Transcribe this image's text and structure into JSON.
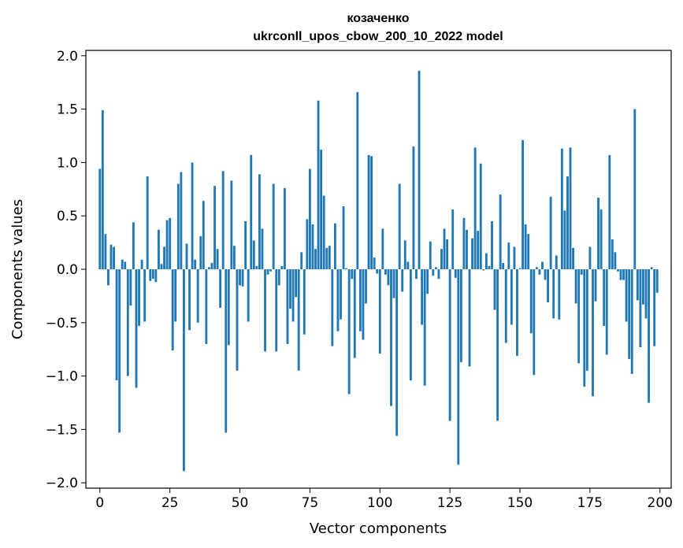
{
  "chart_data": {
    "type": "bar",
    "title": "козаченко",
    "subtitle": "ukrconll_upos_cbow_200_10_2022 model",
    "xlabel": "Vector components",
    "ylabel": "Components values",
    "xlim": [
      -5,
      204
    ],
    "ylim": [
      -2.05,
      2.05
    ],
    "x_ticks": [
      0,
      25,
      50,
      75,
      100,
      125,
      150,
      175,
      200
    ],
    "x_tick_labels": [
      "0",
      "25",
      "50",
      "75",
      "100",
      "125",
      "150",
      "175",
      "200"
    ],
    "y_ticks": [
      -2.0,
      -1.5,
      -1.0,
      -0.5,
      0.0,
      0.5,
      1.0,
      1.5,
      2.0
    ],
    "y_tick_labels": [
      "−2.0",
      "−1.5",
      "−1.0",
      "−0.5",
      "0.0",
      "0.5",
      "1.0",
      "1.5",
      "2.0"
    ],
    "bar_color": "#1f77b4",
    "grid": false,
    "values": [
      0.94,
      1.49,
      0.33,
      -0.15,
      0.23,
      0.21,
      -1.04,
      -1.53,
      0.09,
      0.07,
      -1.0,
      -0.34,
      0.44,
      -1.11,
      -0.53,
      0.09,
      -0.49,
      0.87,
      -0.11,
      -0.09,
      -0.12,
      0.37,
      0.05,
      0.21,
      0.46,
      0.48,
      -0.76,
      -0.49,
      0.8,
      0.91,
      -1.89,
      0.24,
      -0.57,
      1.0,
      0.09,
      -0.5,
      0.31,
      0.64,
      -0.7,
      0.02,
      0.06,
      0.78,
      0.19,
      -0.36,
      0.92,
      -1.53,
      -0.71,
      0.83,
      0.22,
      -0.95,
      -0.15,
      -0.16,
      0.45,
      -0.49,
      1.07,
      0.27,
      0.03,
      0.89,
      0.38,
      -0.77,
      -0.05,
      -0.02,
      0.8,
      -0.77,
      -0.15,
      0.03,
      0.76,
      -0.7,
      -0.37,
      -0.49,
      -0.26,
      -0.95,
      0.16,
      -0.61,
      0.47,
      0.94,
      0.42,
      0.19,
      1.58,
      1.12,
      0.69,
      0.2,
      0.22,
      -0.72,
      0.43,
      -0.58,
      -0.47,
      0.59,
      0.01,
      -1.17,
      -0.09,
      -0.83,
      1.66,
      -0.58,
      -0.66,
      -0.32,
      1.07,
      1.06,
      0.11,
      -0.04,
      -0.79,
      0.38,
      -0.05,
      -0.15,
      -1.28,
      -0.27,
      -1.56,
      0.8,
      -0.21,
      0.27,
      0.07,
      -1.04,
      1.15,
      -0.09,
      1.86,
      -0.52,
      -1.09,
      -0.23,
      0.26,
      -0.06,
      0.02,
      -0.09,
      0.19,
      0.38,
      0.28,
      -1.42,
      0.56,
      -0.08,
      -1.83,
      -0.87,
      0.48,
      0.37,
      -0.91,
      0.29,
      1.14,
      0.36,
      0.99,
      -0.01,
      0.15,
      0.03,
      0.45,
      -0.38,
      -1.42,
      0.7,
      0.06,
      -0.69,
      0.25,
      -0.52,
      0.21,
      -0.81,
      0.01,
      1.21,
      0.42,
      0.33,
      -0.6,
      -0.99,
      0.02,
      -0.05,
      0.07,
      -0.1,
      -0.31,
      0.68,
      -0.46,
      0.13,
      -0.47,
      1.13,
      0.55,
      0.87,
      1.14,
      0.2,
      -0.32,
      -0.88,
      -0.05,
      -1.1,
      -0.95,
      0.21,
      -1.19,
      -0.3,
      0.67,
      0.56,
      -0.53,
      -0.8,
      1.07,
      0.28,
      0.16,
      -0.02,
      -0.1,
      -0.1,
      -0.49,
      -0.84,
      -0.98,
      1.5,
      -0.29,
      -0.73,
      -0.33,
      -0.46,
      -1.25,
      0.02,
      -0.72,
      -0.22
    ]
  }
}
